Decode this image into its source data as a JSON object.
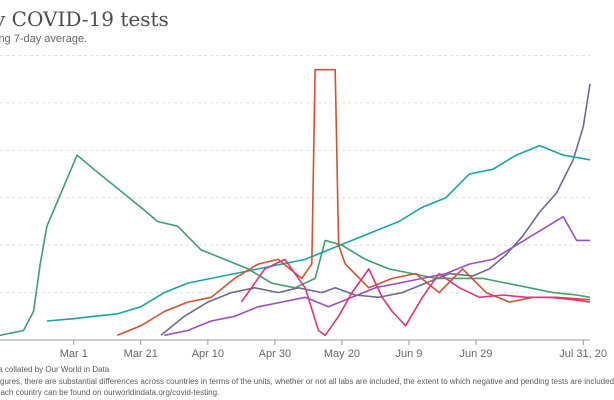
{
  "title": "y COVID-19 tests",
  "subtitle": "ing 7-day average.",
  "footer": {
    "source": "ta collated by Our World in Data",
    "note_line1": "figures, there are substantial differences across countries in terms of the units, whether or not all labs are included, the extent to which negative and pending tests are included",
    "note_line2": "each country can be found on ourworldindata.org/covid-testing."
  },
  "colors": {
    "grid": "#dddddd",
    "axis": "#999999"
  },
  "chart_data": {
    "type": "line",
    "title": "y COVID-19 tests",
    "subtitle": "ing 7-day average.",
    "x_axis": {
      "type": "date",
      "range": [
        "2020-02-08",
        "2020-08-02"
      ],
      "ticks": [
        {
          "date": "2020-03-01",
          "label": "Mar 1"
        },
        {
          "date": "2020-03-21",
          "label": "Mar 21"
        },
        {
          "date": "2020-04-10",
          "label": "Apr 10"
        },
        {
          "date": "2020-04-30",
          "label": "Apr 30"
        },
        {
          "date": "2020-05-20",
          "label": "May 20"
        },
        {
          "date": "2020-06-09",
          "label": "Jun 9"
        },
        {
          "date": "2020-06-29",
          "label": "Jun 29"
        },
        {
          "date": "2020-07-31",
          "label": "Jul 31, 20"
        }
      ]
    },
    "y_axis": {
      "ylim": [
        0,
        6.2
      ],
      "gridlines": [
        1,
        2,
        3,
        4,
        5,
        6
      ],
      "tick_labels_visible": false
    },
    "grid": true,
    "legend": "none",
    "series": [
      {
        "color": "#6b6b8e",
        "x": [
          "2020-03-27",
          "2020-04-03",
          "2020-04-10",
          "2020-04-17",
          "2020-04-24",
          "2020-05-01",
          "2020-05-07",
          "2020-05-14",
          "2020-05-18",
          "2020-05-24",
          "2020-05-31",
          "2020-06-07",
          "2020-06-14",
          "2020-06-21",
          "2020-06-28",
          "2020-07-03",
          "2020-07-08",
          "2020-07-13",
          "2020-07-18",
          "2020-07-23",
          "2020-07-28",
          "2020-07-31",
          "2020-08-02"
        ],
        "y": [
          0.1,
          0.5,
          0.8,
          1.0,
          1.1,
          1.0,
          1.1,
          1.0,
          1.1,
          0.95,
          0.9,
          1.0,
          1.2,
          1.4,
          1.35,
          1.5,
          1.8,
          2.2,
          2.7,
          3.1,
          3.8,
          4.5,
          5.4
        ]
      },
      {
        "color": "#3f9f6f",
        "x": [
          "2020-02-08",
          "2020-02-15",
          "2020-02-18",
          "2020-02-20",
          "2020-02-22",
          "2020-02-25",
          "2020-02-28",
          "2020-03-02",
          "2020-03-07",
          "2020-03-14",
          "2020-03-21",
          "2020-03-26",
          "2020-04-01",
          "2020-04-08",
          "2020-04-15",
          "2020-04-22",
          "2020-04-29",
          "2020-05-06",
          "2020-05-12",
          "2020-05-15",
          "2020-05-20",
          "2020-05-27",
          "2020-06-03",
          "2020-06-10",
          "2020-06-17",
          "2020-06-24",
          "2020-07-01",
          "2020-07-08",
          "2020-07-15",
          "2020-07-22",
          "2020-07-29",
          "2020-08-02"
        ],
        "y": [
          0.1,
          0.2,
          0.6,
          1.6,
          2.4,
          2.9,
          3.4,
          3.9,
          3.6,
          3.2,
          2.8,
          2.5,
          2.4,
          1.9,
          1.7,
          1.5,
          1.2,
          1.1,
          1.3,
          2.1,
          2.0,
          1.7,
          1.5,
          1.4,
          1.3,
          1.3,
          1.3,
          1.2,
          1.1,
          1.0,
          0.95,
          0.9
        ]
      },
      {
        "color": "#17a5a5",
        "x": [
          "2020-02-22",
          "2020-03-01",
          "2020-03-07",
          "2020-03-14",
          "2020-03-21",
          "2020-03-28",
          "2020-04-04",
          "2020-04-11",
          "2020-04-18",
          "2020-04-25",
          "2020-05-02",
          "2020-05-09",
          "2020-05-16",
          "2020-05-23",
          "2020-05-30",
          "2020-06-06",
          "2020-06-13",
          "2020-06-20",
          "2020-06-27",
          "2020-07-04",
          "2020-07-11",
          "2020-07-18",
          "2020-07-25",
          "2020-08-02"
        ],
        "y": [
          0.4,
          0.45,
          0.5,
          0.55,
          0.7,
          1.0,
          1.2,
          1.3,
          1.4,
          1.5,
          1.6,
          1.7,
          1.9,
          2.1,
          2.3,
          2.5,
          2.8,
          3.0,
          3.5,
          3.6,
          3.9,
          4.1,
          3.9,
          3.8
        ]
      },
      {
        "color": "#d4512e",
        "x": [
          "2020-03-14",
          "2020-03-21",
          "2020-03-28",
          "2020-04-04",
          "2020-04-11",
          "2020-04-18",
          "2020-04-25",
          "2020-05-01",
          "2020-05-08",
          "2020-05-11",
          "2020-05-12",
          "2020-05-18",
          "2020-05-19",
          "2020-05-21",
          "2020-05-28",
          "2020-06-04",
          "2020-06-11",
          "2020-06-18",
          "2020-06-25",
          "2020-07-02",
          "2020-07-09",
          "2020-07-16",
          "2020-07-23",
          "2020-08-02"
        ],
        "y": [
          0.1,
          0.3,
          0.6,
          0.8,
          0.9,
          1.3,
          1.6,
          1.7,
          1.3,
          1.6,
          5.7,
          5.7,
          2.0,
          1.6,
          1.1,
          1.3,
          1.4,
          1.0,
          1.5,
          1.0,
          0.8,
          0.9,
          0.9,
          0.85
        ]
      },
      {
        "color": "#9a4fc8",
        "x": [
          "2020-03-28",
          "2020-04-04",
          "2020-04-11",
          "2020-04-18",
          "2020-04-25",
          "2020-05-02",
          "2020-05-09",
          "2020-05-16",
          "2020-05-23",
          "2020-05-30",
          "2020-06-06",
          "2020-06-13",
          "2020-06-20",
          "2020-06-27",
          "2020-07-04",
          "2020-07-11",
          "2020-07-18",
          "2020-07-25",
          "2020-07-29",
          "2020-08-02"
        ],
        "y": [
          0.1,
          0.2,
          0.4,
          0.5,
          0.7,
          0.8,
          0.9,
          0.7,
          0.9,
          1.1,
          1.2,
          1.3,
          1.4,
          1.6,
          1.7,
          2.0,
          2.3,
          2.6,
          2.1,
          2.1
        ]
      },
      {
        "color": "#e0337a",
        "x": [
          "2020-04-20",
          "2020-04-27",
          "2020-05-03",
          "2020-05-09",
          "2020-05-13",
          "2020-05-15",
          "2020-05-19",
          "2020-05-23",
          "2020-05-28",
          "2020-06-01",
          "2020-06-04",
          "2020-06-08",
          "2020-06-13",
          "2020-06-18",
          "2020-06-24",
          "2020-06-30",
          "2020-07-07",
          "2020-07-14",
          "2020-07-21",
          "2020-07-28",
          "2020-08-02"
        ],
        "y": [
          0.8,
          1.5,
          1.7,
          1.1,
          0.2,
          0.1,
          0.5,
          1.0,
          1.5,
          0.9,
          0.6,
          0.3,
          0.9,
          1.4,
          1.1,
          0.9,
          0.95,
          0.9,
          0.9,
          0.85,
          0.8
        ]
      }
    ]
  }
}
